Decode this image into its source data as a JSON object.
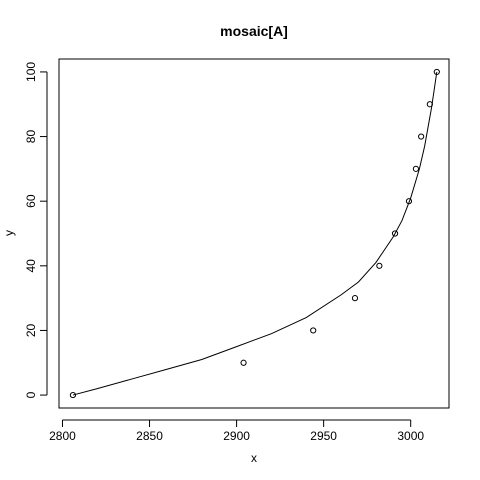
{
  "chart_data": {
    "type": "scatter",
    "title": "mosaic[A]",
    "xlabel": "x",
    "ylabel": "y",
    "xlim": [
      2798,
      3022
    ],
    "ylim": [
      -4,
      104
    ],
    "x_ticks": [
      2800,
      2850,
      2900,
      2950,
      3000
    ],
    "y_ticks": [
      0,
      20,
      40,
      60,
      80,
      100
    ],
    "grid": false,
    "legend": "none",
    "series": [
      {
        "kind": "points",
        "x": [
          2806,
          2904,
          2944,
          2968,
          2982,
          2991,
          2999,
          3003,
          3006,
          3011,
          3015
        ],
        "y": [
          0,
          10,
          20,
          30,
          40,
          50,
          60,
          70,
          80,
          90,
          100
        ]
      },
      {
        "kind": "line",
        "x": [
          2806,
          2820,
          2840,
          2860,
          2880,
          2900,
          2920,
          2940,
          2960,
          2970,
          2980,
          2990,
          2995,
          3000,
          3005,
          3008,
          3010,
          3012,
          3015
        ],
        "y": [
          0,
          2,
          5,
          8,
          11,
          15,
          19,
          24,
          31,
          35,
          41,
          49,
          54,
          61,
          70,
          77,
          83,
          89,
          100
        ]
      }
    ]
  }
}
